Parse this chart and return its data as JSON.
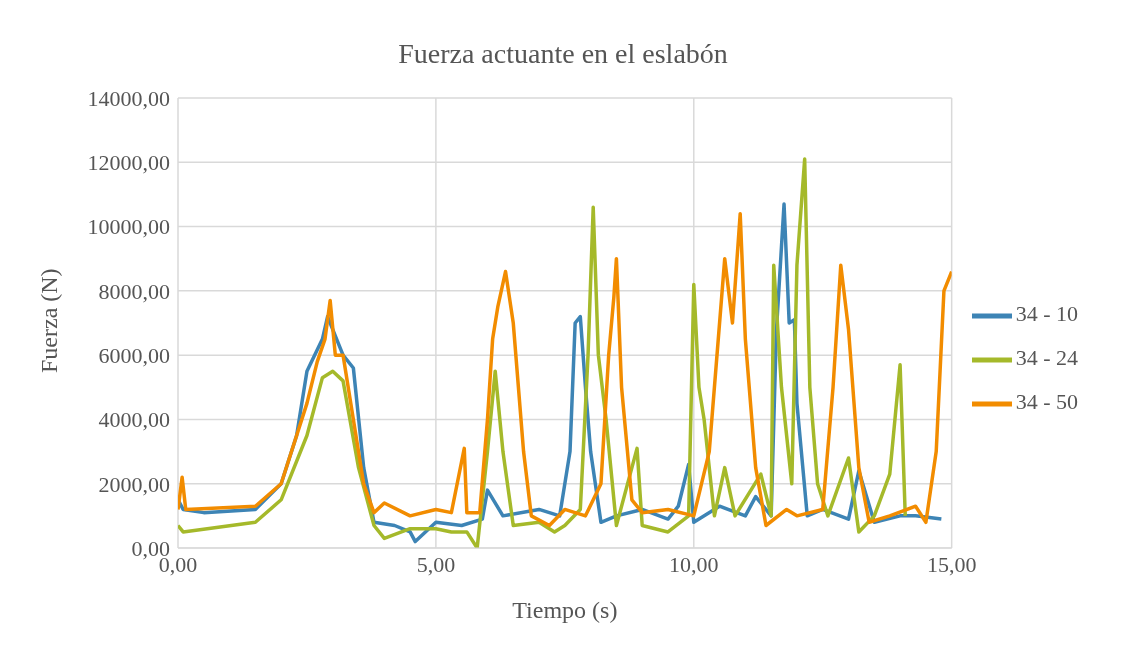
{
  "chart_data": {
    "type": "line",
    "title": "Fuerza actuante en el eslabón",
    "xlabel": "Tiempo (s)",
    "ylabel": "Fuerza (N)",
    "xlim": [
      0,
      15
    ],
    "xticks": [
      {
        "value": 0,
        "label": "0,00"
      },
      {
        "value": 5,
        "label": "5,00"
      },
      {
        "value": 10,
        "label": "10,00"
      },
      {
        "value": 15,
        "label": "15,00"
      }
    ],
    "ylim": [
      0,
      14000
    ],
    "yticks": [
      {
        "value": 0,
        "label": "0,00"
      },
      {
        "value": 2000,
        "label": "2000,00"
      },
      {
        "value": 4000,
        "label": "4000,00"
      },
      {
        "value": 6000,
        "label": "6000,00"
      },
      {
        "value": 8000,
        "label": "8000,00"
      },
      {
        "value": 10000,
        "label": "10000,00"
      },
      {
        "value": 12000,
        "label": "12000,00"
      },
      {
        "value": 14000,
        "label": "14000,00"
      }
    ],
    "grid": true,
    "legend": "right",
    "marker": "none",
    "line_style": "solid",
    "series": [
      {
        "name": "34 - 10",
        "color": "#3d84b5",
        "x": [
          0,
          0.1,
          0.5,
          1.5,
          2.0,
          2.3,
          2.5,
          2.8,
          2.9,
          3.2,
          3.4,
          3.6,
          3.8,
          4.2,
          4.5,
          4.6,
          5.0,
          5.5,
          5.9,
          6.0,
          6.3,
          7.0,
          7.4,
          7.6,
          7.7,
          7.8,
          7.9,
          8.0,
          8.2,
          8.5,
          9.0,
          9.5,
          9.7,
          9.9,
          10.0,
          10.5,
          11.0,
          11.2,
          11.5,
          11.6,
          11.75,
          11.85,
          11.95,
          12.0,
          12.2,
          12.5,
          13.0,
          13.2,
          13.5,
          14.0,
          14.3,
          14.8
        ],
        "values": [
          1500,
          1200,
          1100,
          1200,
          2000,
          3500,
          5500,
          6500,
          7200,
          6000,
          5600,
          2500,
          800,
          700,
          500,
          200,
          800,
          700,
          900,
          1800,
          1000,
          1200,
          1000,
          3000,
          7000,
          7200,
          5000,
          3000,
          800,
          1000,
          1200,
          900,
          1300,
          2600,
          800,
          1300,
          1000,
          1600,
          1000,
          6700,
          10700,
          7000,
          7100,
          4500,
          1000,
          1200,
          900,
          2400,
          800,
          1000,
          1000,
          900
        ]
      },
      {
        "name": "34 - 24",
        "color": "#a5b92a",
        "x": [
          0,
          0.1,
          1.5,
          2.0,
          2.5,
          2.8,
          3.0,
          3.2,
          3.5,
          3.8,
          4.0,
          4.5,
          5.0,
          5.3,
          5.6,
          5.8,
          6.0,
          6.15,
          6.3,
          6.5,
          7.0,
          7.3,
          7.5,
          7.8,
          7.95,
          8.05,
          8.15,
          8.3,
          8.5,
          8.9,
          9.0,
          9.5,
          9.9,
          10.0,
          10.1,
          10.2,
          10.4,
          10.6,
          10.8,
          11.3,
          11.5,
          11.55,
          11.7,
          11.9,
          12.0,
          12.15,
          12.25,
          12.4,
          12.6,
          13.0,
          13.2,
          13.5,
          13.8,
          14.0,
          14.1
        ],
        "values": [
          700,
          500,
          800,
          1500,
          3500,
          5300,
          5500,
          5200,
          2500,
          700,
          300,
          600,
          600,
          500,
          500,
          0,
          3000,
          5500,
          3000,
          700,
          800,
          500,
          700,
          1200,
          6000,
          10600,
          6000,
          4000,
          700,
          3100,
          700,
          500,
          1000,
          8200,
          5000,
          4000,
          1000,
          2500,
          1000,
          2300,
          1000,
          8800,
          5000,
          2000,
          8800,
          12100,
          5000,
          2000,
          1000,
          2800,
          500,
          1000,
          2300,
          5700,
          1000
        ]
      },
      {
        "name": "34 - 50",
        "color": "#f28c00",
        "x": [
          0,
          0.08,
          0.15,
          1.5,
          2.0,
          2.5,
          2.7,
          2.85,
          2.95,
          3.05,
          3.2,
          3.4,
          3.6,
          3.8,
          4.0,
          4.5,
          5.0,
          5.3,
          5.55,
          5.6,
          5.85,
          6.0,
          6.1,
          6.2,
          6.35,
          6.5,
          6.7,
          6.85,
          7.2,
          7.5,
          7.9,
          8.2,
          8.35,
          8.45,
          8.5,
          8.6,
          8.8,
          9.0,
          9.5,
          10.0,
          10.3,
          10.5,
          10.6,
          10.75,
          10.9,
          11.0,
          11.2,
          11.4,
          11.8,
          12.0,
          12.5,
          12.7,
          12.85,
          13.0,
          13.2,
          13.4,
          13.8,
          14.3,
          14.5,
          14.7,
          14.85,
          15.0
        ],
        "values": [
          1200,
          2200,
          1200,
          1300,
          2000,
          4500,
          5800,
          6500,
          7700,
          6000,
          6000,
          4000,
          2000,
          1100,
          1400,
          1000,
          1200,
          1100,
          3100,
          1100,
          1100,
          4000,
          6500,
          7500,
          8600,
          7000,
          3000,
          1000,
          700,
          1200,
          1000,
          2000,
          6000,
          7800,
          9000,
          5000,
          1500,
          1100,
          1200,
          1000,
          3000,
          7000,
          9000,
          7000,
          10400,
          6500,
          2500,
          700,
          1200,
          1000,
          1200,
          5000,
          8800,
          6800,
          2500,
          800,
          1000,
          1300,
          800,
          3000,
          8000,
          8600
        ]
      }
    ]
  }
}
